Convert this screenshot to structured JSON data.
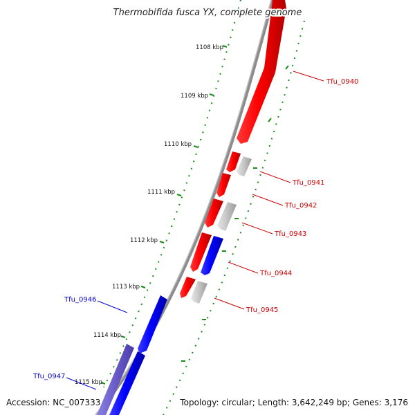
{
  "title": "Thermobifida fusca YX, complete genome",
  "footer": {
    "accession": "Accession: NC_007333",
    "summary": "Topology: circular; Length: 3,642,249 bp; Genes: 3,176"
  },
  "colors": {
    "forward_gene": "#ff0000",
    "reverse_gene": "#0000ff",
    "reverse_pseudo": "#7060c8",
    "rna_gene": "#c8c8c8",
    "backbone": "#8c8c8c",
    "tick": "#1a8a1a",
    "forward_label": "#cc0000",
    "reverse_label": "#0000cc"
  },
  "ticks": [
    "1108 kbp",
    "1109 kbp",
    "1110 kbp",
    "1111 kbp",
    "1112 kbp",
    "1113 kbp",
    "1114 kbp",
    "1115 kbp"
  ],
  "genes": [
    {
      "label": "Tfu_0940",
      "strand": "forward"
    },
    {
      "label": "Tfu_0941",
      "strand": "forward"
    },
    {
      "label": "Tfu_0942",
      "strand": "forward"
    },
    {
      "label": "Tfu_0943",
      "strand": "forward"
    },
    {
      "label": "Tfu_0944",
      "strand": "forward"
    },
    {
      "label": "Tfu_0945",
      "strand": "forward"
    },
    {
      "label": "Tfu_0946",
      "strand": "reverse"
    },
    {
      "label": "Tfu_0947",
      "strand": "reverse"
    }
  ]
}
